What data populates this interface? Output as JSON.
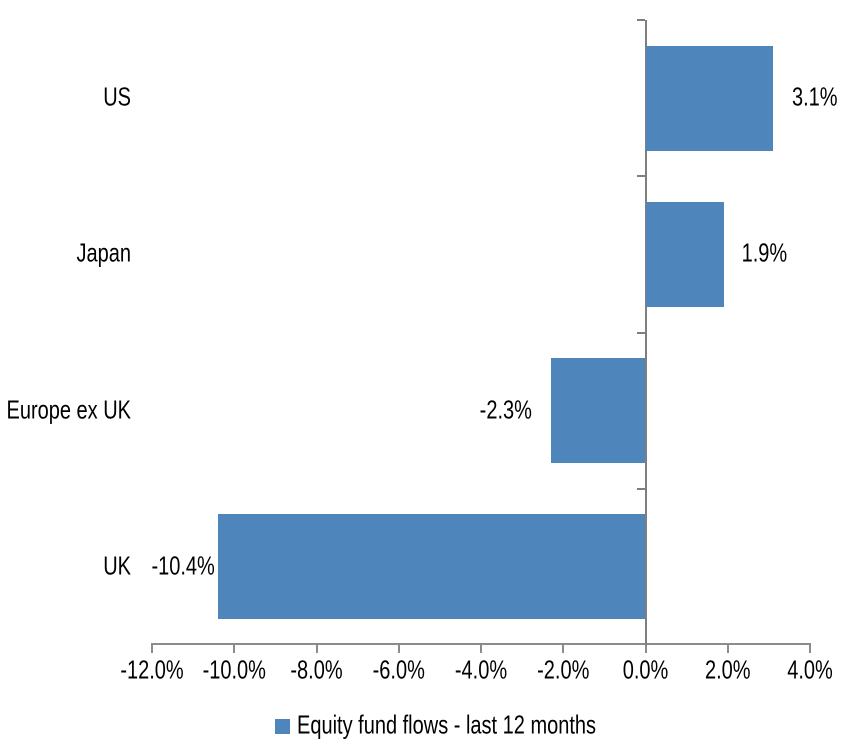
{
  "chart_data": {
    "type": "bar",
    "orientation": "horizontal",
    "title": "",
    "categories": [
      "US",
      "Japan",
      "Europe ex UK",
      "UK"
    ],
    "values": [
      3.1,
      1.9,
      -2.3,
      -10.4
    ],
    "data_labels": [
      "3.1%",
      "1.9%",
      "-2.3%",
      "-10.4%"
    ],
    "x_tick_labels": [
      "-12.0%",
      "-10.0%",
      "-8.0%",
      "-6.0%",
      "-4.0%",
      "-2.0%",
      "0.0%",
      "2.0%",
      "4.0%"
    ],
    "x_tick_values": [
      -12,
      -10,
      -8,
      -6,
      -4,
      -2,
      0,
      2,
      4
    ],
    "xlim": [
      -12,
      4
    ],
    "grid": false,
    "legend": "Equity fund flows - last 12 months",
    "legend_position": "bottom-center",
    "bar_color": "#4e86bc",
    "axis_color": "#8c8c8c",
    "zero_line_color": "#7f7f7f",
    "text_color": "#000000",
    "background_color": "#ffffff"
  }
}
